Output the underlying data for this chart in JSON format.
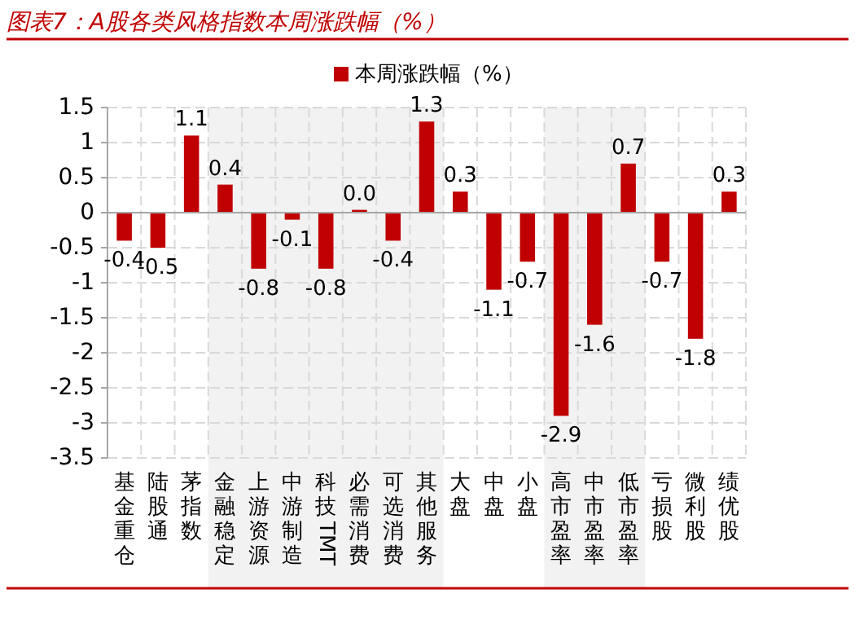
{
  "chart_data": {
    "type": "bar",
    "title": "图表7：A股各类风格指数本周涨跌幅（%）",
    "categories": [
      "基金重仓",
      "陆股通",
      "茅指数",
      "金融稳定",
      "上游资源",
      "中游制造",
      "科技TMT",
      "必需消费",
      "可选消费",
      "其他服务",
      "大盘",
      "中盘",
      "小盘",
      "高市盈率",
      "中市盈率",
      "低市盈率",
      "亏损股",
      "微利股",
      "绩优股"
    ],
    "series": [
      {
        "name": "本周涨跌幅（%）",
        "color": "#c00000",
        "values": [
          -0.4,
          -0.5,
          1.1,
          0.4,
          -0.8,
          -0.1,
          -0.8,
          0.04,
          -0.4,
          1.3,
          0.3,
          -1.1,
          -0.7,
          -2.9,
          -1.6,
          0.7,
          -0.7,
          -1.8,
          0.3
        ],
        "value_labels": [
          "-0.4",
          "-0.5",
          "1.1",
          "0.4",
          "-0.8",
          "-0.1",
          "-0.8",
          "0.0",
          "-0.4",
          "1.3",
          "0.3",
          "-1.1",
          "-0.7",
          "-2.9",
          "-1.6",
          "0.7",
          "-0.7",
          "-1.8",
          "0.3"
        ]
      }
    ],
    "ylim": [
      -3.5,
      1.5
    ],
    "yticks": [
      -3.5,
      -3,
      -2.5,
      -2,
      -1.5,
      -1,
      -0.5,
      0,
      0.5,
      1,
      1.5
    ],
    "grid": true,
    "legend": "top",
    "bands": [
      {
        "axis": "x",
        "from": "金融稳定",
        "to": "其他服务",
        "color": "#f2f2f2"
      },
      {
        "axis": "x",
        "from": "高市盈率",
        "to": "低市盈率",
        "color": "#f2f2f2"
      }
    ]
  }
}
